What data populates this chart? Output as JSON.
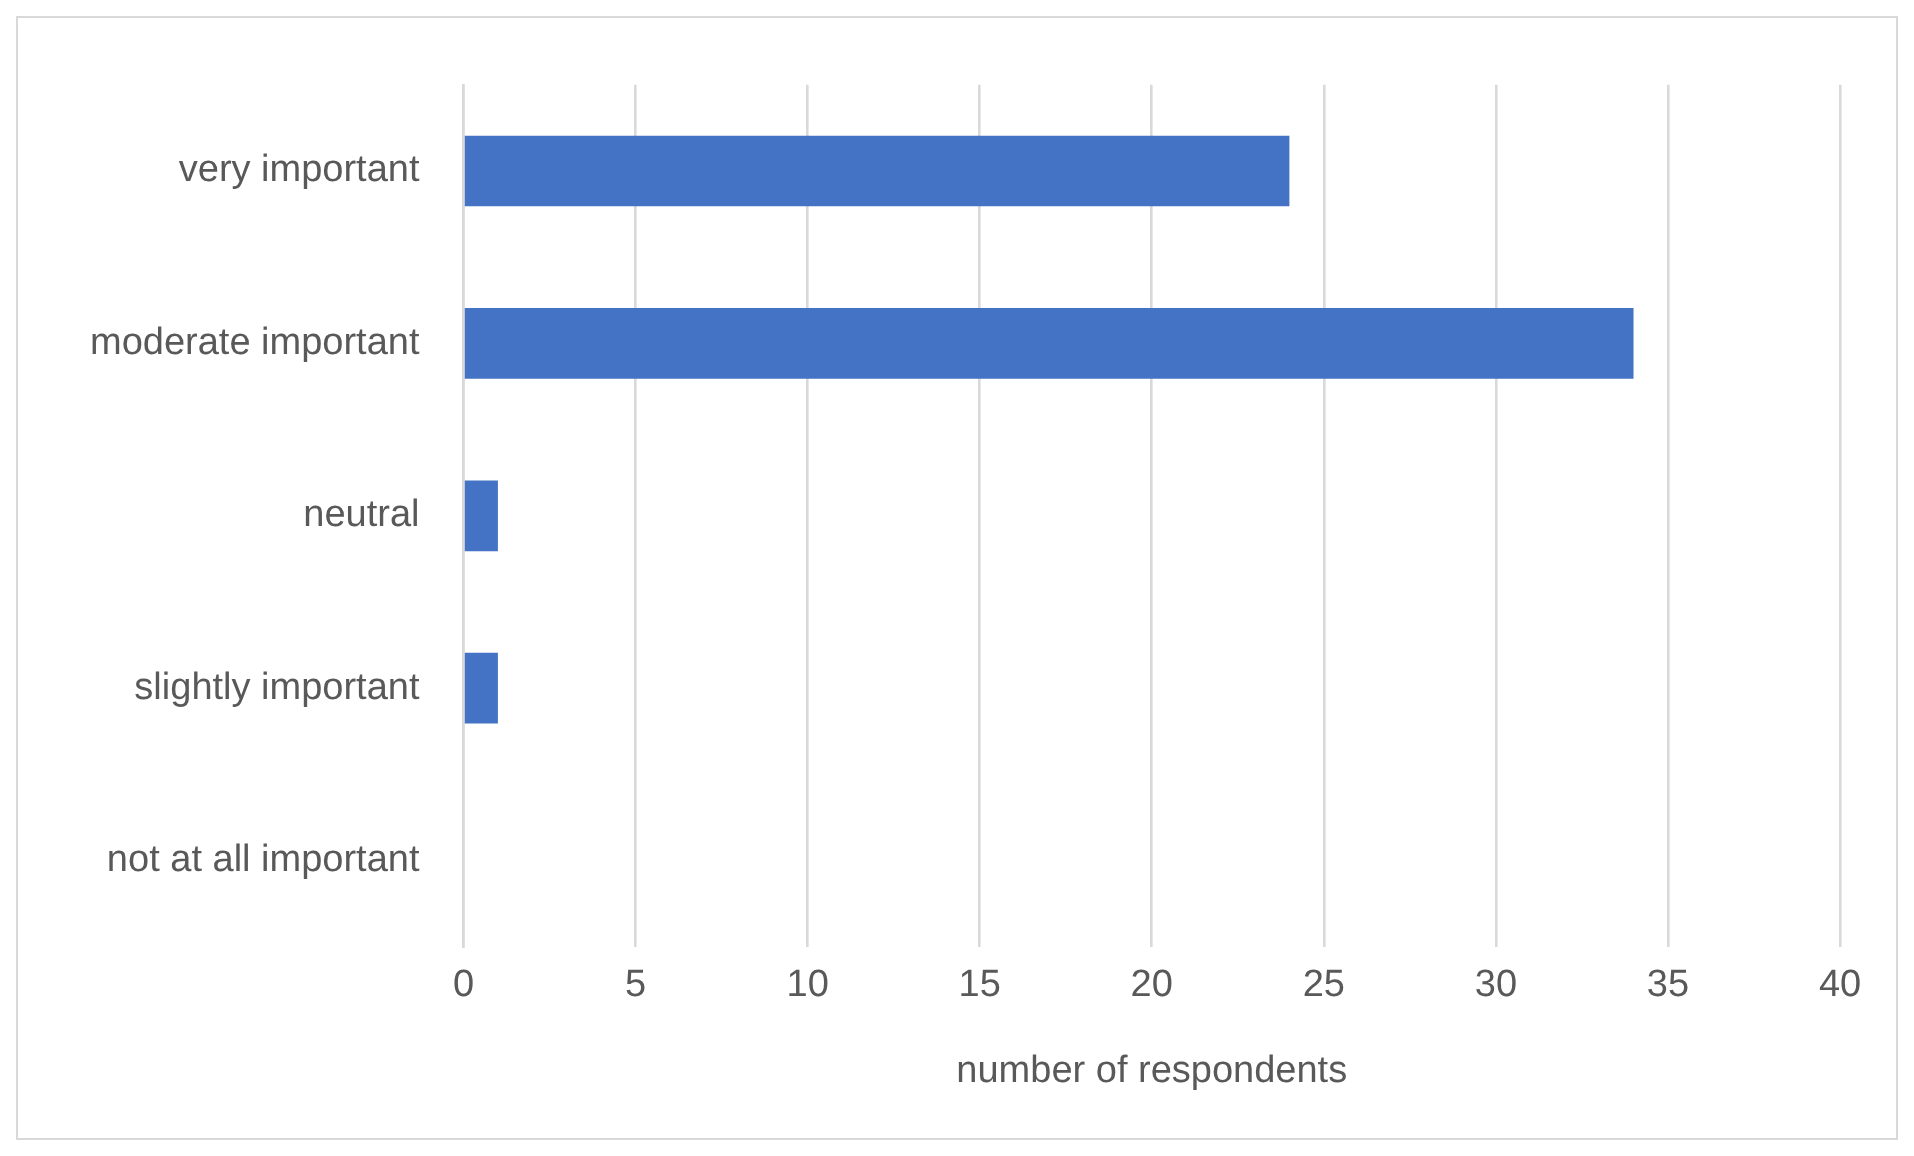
{
  "chart_data": {
    "type": "bar",
    "orientation": "horizontal",
    "xlabel": "number of respondents",
    "categories": [
      "very important",
      "moderate important",
      "neutral",
      "slightly important",
      "not at all important"
    ],
    "values": [
      24,
      34,
      1,
      1,
      0
    ],
    "color": "#4472c4",
    "xlim": [
      0,
      40
    ],
    "xticks": [
      0,
      5,
      10,
      15,
      20,
      25,
      30,
      35,
      40
    ],
    "grid": "x",
    "legend": false
  }
}
